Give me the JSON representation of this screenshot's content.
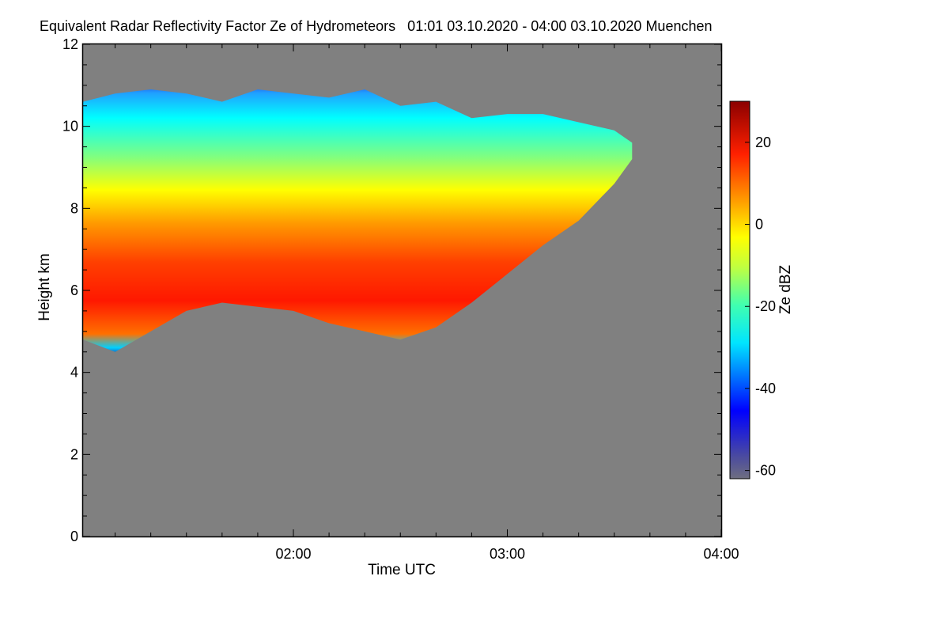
{
  "chart_data": {
    "type": "heatmap",
    "title": "Equivalent Radar Reflectivity Factor Ze of Hydrometeors   01:01 03.10.2020 - 04:00 03.10.2020 Muenchen",
    "xlabel": "Time UTC",
    "ylabel": "Height km",
    "x_range": [
      "01:01",
      "04:00"
    ],
    "x_ticks": [
      "02:00",
      "03:00",
      "04:00"
    ],
    "ylim": [
      0,
      12
    ],
    "y_ticks": [
      "0",
      "2",
      "4",
      "6",
      "8",
      "10",
      "12"
    ],
    "colorbar": {
      "label": "Ze dBZ",
      "range": [
        -62,
        30
      ],
      "ticks": [
        "20",
        "0",
        "-20",
        "-40",
        "-60"
      ]
    },
    "background_color": "#808080",
    "cloud_profile": {
      "minutes_after_0100": [
        1,
        10,
        20,
        30,
        40,
        50,
        60,
        70,
        80,
        90,
        100,
        110,
        120,
        130,
        140,
        150,
        155
      ],
      "base_km": [
        4.8,
        4.5,
        5.0,
        5.5,
        5.7,
        5.6,
        5.5,
        5.2,
        5.0,
        4.8,
        5.1,
        5.7,
        6.4,
        7.1,
        7.7,
        8.6,
        9.2
      ],
      "top_km": [
        10.6,
        10.8,
        10.9,
        10.8,
        10.6,
        10.9,
        10.8,
        10.7,
        10.9,
        10.5,
        10.6,
        10.2,
        10.3,
        10.3,
        10.1,
        9.9,
        9.6
      ]
    }
  }
}
